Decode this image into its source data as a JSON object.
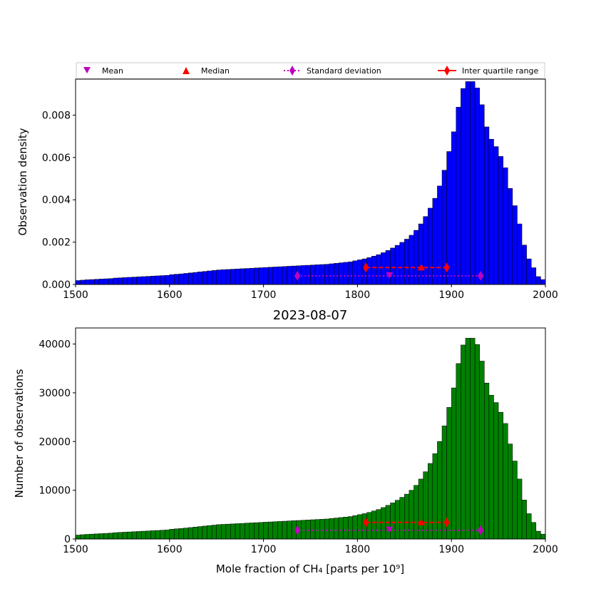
{
  "chart_data": {
    "type": "bar",
    "title": "2023-08-07",
    "legend": {
      "placement": "top (above upper panel, horizontal row)",
      "entries": [
        {
          "name": "Mean",
          "color": "#bf00bf",
          "marker": "triangle-down"
        },
        {
          "name": "Median",
          "color": "#ff0000",
          "marker": "triangle-up"
        },
        {
          "name": "Standard deviation",
          "color": "#bf00bf",
          "marker": "diamond",
          "line": "dotted"
        },
        {
          "name": "Inter quartile range",
          "color": "#ff0000",
          "marker": "diamond",
          "line": "solid"
        }
      ]
    },
    "xlabel": "Mole fraction of CH₄ [parts per 10⁹]",
    "xlim": [
      1500,
      2000
    ],
    "xticks": [
      1500,
      1600,
      1700,
      1800,
      1900,
      2000
    ],
    "bin_width": 5,
    "bin_starts_from": 1500,
    "counts": [
      800,
      880,
      950,
      1000,
      1050,
      1100,
      1150,
      1200,
      1300,
      1350,
      1400,
      1450,
      1500,
      1550,
      1600,
      1650,
      1700,
      1750,
      1800,
      1850,
      2000,
      2080,
      2150,
      2250,
      2350,
      2450,
      2550,
      2650,
      2750,
      2850,
      2950,
      3000,
      3050,
      3100,
      3150,
      3200,
      3250,
      3300,
      3350,
      3400,
      3450,
      3500,
      3550,
      3600,
      3650,
      3700,
      3750,
      3800,
      3850,
      3900,
      3950,
      4000,
      4050,
      4100,
      4200,
      4300,
      4400,
      4500,
      4600,
      4800,
      5000,
      5200,
      5450,
      5750,
      6050,
      6450,
      6900,
      7400,
      7950,
      8550,
      9200,
      10000,
      11000,
      12300,
      13800,
      15500,
      17500,
      20000,
      23200,
      27000,
      31000,
      36000,
      39800,
      41200,
      41200,
      39900,
      36500,
      32000,
      29500,
      28000,
      26000,
      23700,
      19500,
      16000,
      12300,
      8000,
      5200,
      3400,
      1600,
      1000,
      500,
      300,
      200,
      100,
      50,
      20,
      10,
      0,
      0,
      0,
      0,
      0,
      0,
      0,
      0,
      0,
      0,
      0,
      0,
      0,
      0,
      0,
      0,
      0,
      0,
      0,
      0,
      0
    ],
    "panels": [
      {
        "name": "density",
        "bar_color": "#0000ff",
        "ylabel": "Observation density",
        "ylim": [
          0,
          0.0097
        ],
        "yticks": [
          "0.000",
          "0.002",
          "0.004",
          "0.006",
          "0.008"
        ],
        "ytick_values": [
          0,
          0.002,
          0.004,
          0.006,
          0.008
        ],
        "stats": {
          "mean": 1834,
          "mean_y": 0.00041,
          "median": 1868,
          "median_y": 0.0008,
          "std_low": 1736,
          "std_high": 1931,
          "std_y": 0.00041,
          "iqr_low": 1809,
          "iqr_high": 1895,
          "iqr_y": 0.0008
        }
      },
      {
        "name": "counts",
        "bar_color": "#008000",
        "ylabel": "Number of observations",
        "ylim": [
          0,
          43300
        ],
        "yticks": [
          "0",
          "10000",
          "20000",
          "30000",
          "40000"
        ],
        "ytick_values": [
          0,
          10000,
          20000,
          30000,
          40000
        ],
        "stats": {
          "mean": 1834,
          "mean_y": 1800,
          "median": 1868,
          "median_y": 3400,
          "std_low": 1736,
          "std_high": 1931,
          "std_y": 1800,
          "iqr_low": 1809,
          "iqr_high": 1895,
          "iqr_y": 3400
        }
      }
    ]
  }
}
